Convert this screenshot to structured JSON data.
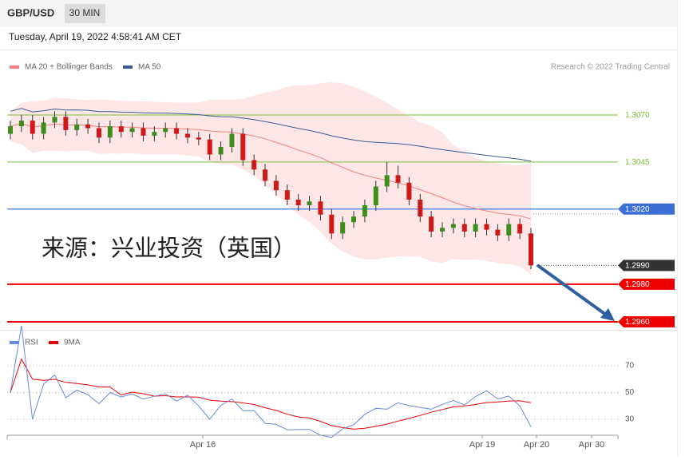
{
  "header": {
    "symbol": "GBP/USD",
    "interval": "30 MIN",
    "timestamp": "Tuesday, April 19, 2022 4:58:41 AM CET"
  },
  "legend": {
    "ma20": "MA 20 + Bollinger Bands",
    "ma50": "MA 50",
    "copyright": "Research © 2022 Trading Central"
  },
  "watermark": "来源：兴业投资（英国）",
  "price_levels": [
    {
      "value": 1.307,
      "label": "1.3070",
      "kind": "resistance"
    },
    {
      "value": 1.3045,
      "label": "1.3045",
      "kind": "resistance"
    },
    {
      "value": 1.302,
      "label": "1.3020",
      "kind": "pivot"
    },
    {
      "value": 1.299,
      "label": "1.2990",
      "kind": "last"
    },
    {
      "value": 1.298,
      "label": "1.2980",
      "kind": "support"
    },
    {
      "value": 1.296,
      "label": "1.2960",
      "kind": "support"
    }
  ],
  "candles": [
    [
      1.306,
      1.3067,
      1.3057,
      1.3064
    ],
    [
      1.3064,
      1.307,
      1.3061,
      1.3067
    ],
    [
      1.3067,
      1.307,
      1.3057,
      1.306
    ],
    [
      1.306,
      1.3069,
      1.3057,
      1.3066
    ],
    [
      1.3066,
      1.3072,
      1.3063,
      1.3069
    ],
    [
      1.3069,
      1.3072,
      1.3059,
      1.3062
    ],
    [
      1.3062,
      1.3068,
      1.3059,
      1.3065
    ],
    [
      1.3065,
      1.3068,
      1.306,
      1.3063
    ],
    [
      1.3063,
      1.3066,
      1.3055,
      1.3058
    ],
    [
      1.3058,
      1.3067,
      1.3055,
      1.3064
    ],
    [
      1.3064,
      1.3067,
      1.3058,
      1.3061
    ],
    [
      1.3061,
      1.3066,
      1.3058,
      1.3063
    ],
    [
      1.3063,
      1.3066,
      1.3056,
      1.3059
    ],
    [
      1.3059,
      1.3064,
      1.3056,
      1.3061
    ],
    [
      1.3061,
      1.3066,
      1.3058,
      1.3063
    ],
    [
      1.3063,
      1.3066,
      1.3057,
      1.306
    ],
    [
      1.306,
      1.3063,
      1.3055,
      1.3058
    ],
    [
      1.3058,
      1.3061,
      1.3054,
      1.3057
    ],
    [
      1.3057,
      1.306,
      1.3046,
      1.3049
    ],
    [
      1.3049,
      1.3056,
      1.3046,
      1.3053
    ],
    [
      1.3053,
      1.3063,
      1.305,
      1.306
    ],
    [
      1.306,
      1.3063,
      1.3043,
      1.3046
    ],
    [
      1.3046,
      1.3049,
      1.3038,
      1.3041
    ],
    [
      1.3041,
      1.3044,
      1.3032,
      1.3035
    ],
    [
      1.3035,
      1.3038,
      1.3027,
      1.303
    ],
    [
      1.303,
      1.3033,
      1.3022,
      1.3025
    ],
    [
      1.3025,
      1.3028,
      1.3019,
      1.3022
    ],
    [
      1.3022,
      1.3027,
      1.3019,
      1.3024
    ],
    [
      1.3024,
      1.3027,
      1.3014,
      1.3017
    ],
    [
      1.3017,
      1.302,
      1.3004,
      1.3007
    ],
    [
      1.3007,
      1.3016,
      1.3004,
      1.3013
    ],
    [
      1.3013,
      1.3019,
      1.301,
      1.3016
    ],
    [
      1.3016,
      1.3025,
      1.3013,
      1.3022
    ],
    [
      1.3022,
      1.3035,
      1.3019,
      1.3032
    ],
    [
      1.3032,
      1.3045,
      1.3029,
      1.3038
    ],
    [
      1.3038,
      1.3043,
      1.3031,
      1.3034
    ],
    [
      1.3034,
      1.3037,
      1.3022,
      1.3025
    ],
    [
      1.3025,
      1.3028,
      1.3013,
      1.3016
    ],
    [
      1.3016,
      1.3019,
      1.3005,
      1.3008
    ],
    [
      1.3008,
      1.3013,
      1.3005,
      1.301
    ],
    [
      1.301,
      1.3015,
      1.3007,
      1.3012
    ],
    [
      1.3012,
      1.3015,
      1.3005,
      1.3008
    ],
    [
      1.3008,
      1.3015,
      1.3005,
      1.3012
    ],
    [
      1.3012,
      1.3015,
      1.3006,
      1.3009
    ],
    [
      1.3009,
      1.3012,
      1.3003,
      1.3006
    ],
    [
      1.3006,
      1.3015,
      1.3003,
      1.3012
    ],
    [
      1.3012,
      1.3015,
      1.3004,
      1.3007
    ],
    [
      1.3007,
      1.301,
      1.2988,
      1.299
    ]
  ],
  "rsi": {
    "legend_rsi": "RSI",
    "legend_ma": "9MA",
    "levels": [
      70,
      50,
      30
    ]
  },
  "x_labels": [
    "Apr 16",
    "Apr 19",
    "Apr 20",
    "Apr 30"
  ]
}
